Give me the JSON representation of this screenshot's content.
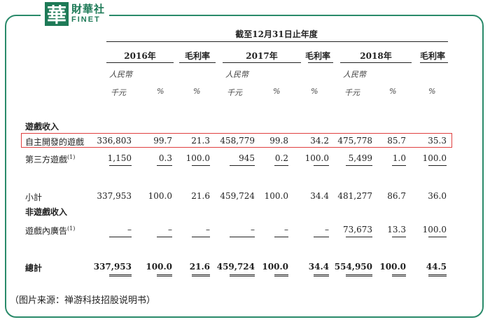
{
  "logo": {
    "mark": "華",
    "cn": "財華社",
    "en": "FINET"
  },
  "period_header": "截至12月31日止年度",
  "columns": [
    {
      "label": "2016年"
    },
    {
      "label": "毛利率"
    },
    {
      "label": "2017年"
    },
    {
      "label": "毛利率"
    },
    {
      "label": "2018年"
    },
    {
      "label": "毛利率"
    }
  ],
  "units": {
    "currency_line1": "人民幣",
    "currency_line2": "千元",
    "percent": "%"
  },
  "rows": [
    {
      "label": "遊戲收入",
      "kind": "section"
    },
    {
      "label": "自主開發的遊戲",
      "kind": "data",
      "values": [
        "336,803",
        "99.7",
        "21.3",
        "458,779",
        "99.8",
        "34.2",
        "475,778",
        "85.7",
        "35.3"
      ]
    },
    {
      "label": "第三方遊戲",
      "sup": "(1)",
      "kind": "data",
      "values": [
        "1,150",
        "0.3",
        "100.0",
        "945",
        "0.2",
        "100.0",
        "5,499",
        "1.0",
        "100.0"
      ]
    },
    {
      "label": "小計",
      "kind": "data",
      "values": [
        "337,953",
        "100.0",
        "21.6",
        "459,724",
        "100.0",
        "34.4",
        "481,277",
        "86.7",
        "36.0"
      ]
    },
    {
      "label": "非遊戲收入",
      "kind": "section"
    },
    {
      "label": "遊戲內廣告",
      "sup": "(1)",
      "kind": "data",
      "values": [
        "–",
        "–",
        "–",
        "–",
        "–",
        "–",
        "73,673",
        "13.3",
        "100.0"
      ]
    },
    {
      "label": "總計",
      "kind": "total",
      "values": [
        "337,953",
        "100.0",
        "21.6",
        "459,724",
        "100.0",
        "34.4",
        "554,950",
        "100.0",
        "44.5"
      ]
    }
  ],
  "source": "（图片来源：禅游科技招股说明书）",
  "colors": {
    "frame": "#2a8a6a",
    "logo": "#1e7a57",
    "highlight": "#e04040"
  }
}
